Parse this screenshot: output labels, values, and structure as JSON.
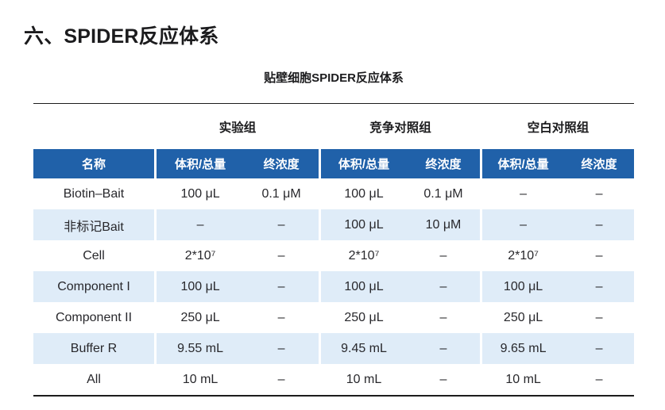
{
  "page": {
    "section_title": "六、SPIDER反应体系",
    "table_title": "贴壁细胞SPIDER反应体系"
  },
  "table": {
    "groups": [
      {
        "label": "实验组"
      },
      {
        "label": "竞争对照组"
      },
      {
        "label": "空白对照组"
      }
    ],
    "header": {
      "name": "名称",
      "volume": "体积/总量",
      "concentration": "终浓度"
    },
    "rows": [
      {
        "name": "Biotin–Bait",
        "cells": [
          "100 μL",
          "0.1 μM",
          "100 μL",
          "0.1 μM",
          "–",
          "–"
        ]
      },
      {
        "name": "非标记Bait",
        "cells": [
          "–",
          "–",
          "100 μL",
          "10 μM",
          "–",
          "–"
        ]
      },
      {
        "name": "Cell",
        "cells": [
          "2*10⁷",
          "–",
          "2*10⁷",
          "–",
          "2*10⁷",
          "–"
        ]
      },
      {
        "name": "Component I",
        "cells": [
          "100 μL",
          "–",
          "100 μL",
          "–",
          "100 μL",
          "–"
        ]
      },
      {
        "name": "Component II",
        "cells": [
          "250 μL",
          "–",
          "250 μL",
          "–",
          "250 μL",
          "–"
        ]
      },
      {
        "name": "Buffer R",
        "cells": [
          "9.55 mL",
          "–",
          "9.45 mL",
          "–",
          "9.65 mL",
          "–"
        ]
      },
      {
        "name": "All",
        "cells": [
          "10 mL",
          "–",
          "10 mL",
          "–",
          "10 mL",
          "–"
        ]
      }
    ],
    "colors": {
      "header_bg": "#2061a9",
      "alt_row_bg": "#dfecf8"
    }
  }
}
